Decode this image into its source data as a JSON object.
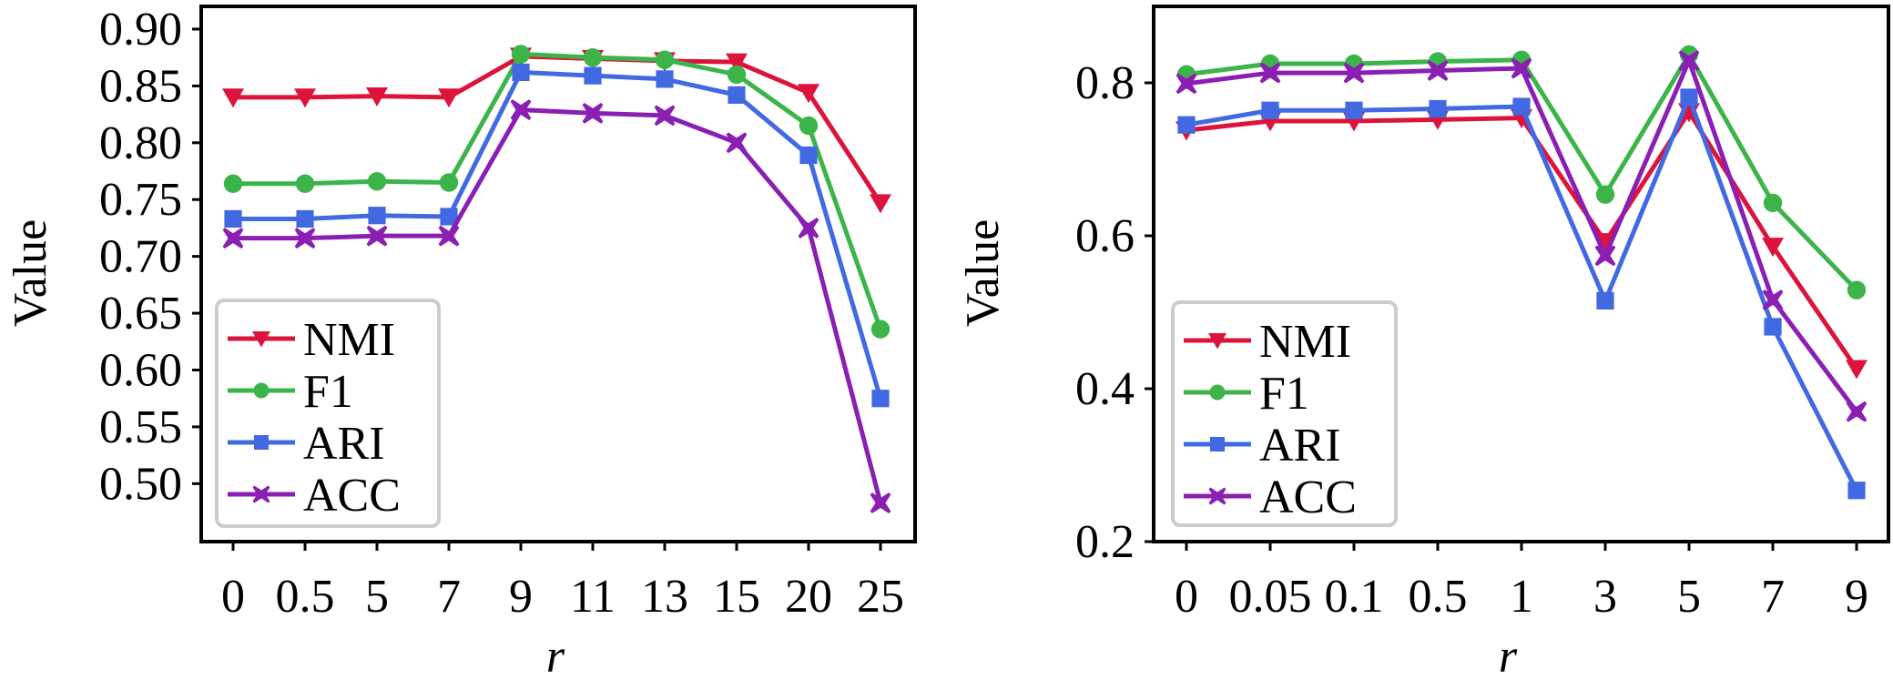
{
  "chart_data": [
    {
      "type": "line",
      "panel": "left",
      "title": "",
      "xlabel": "r",
      "ylabel": "Value",
      "categories": [
        "0",
        "0.5",
        "5",
        "7",
        "9",
        "11",
        "13",
        "15",
        "20",
        "25"
      ],
      "ylim": [
        0.449,
        0.92
      ],
      "yticks": [
        0.5,
        0.55,
        0.6,
        0.65,
        0.7,
        0.75,
        0.8,
        0.85,
        0.9
      ],
      "ytick_labels": [
        "0.50",
        "0.55",
        "0.60",
        "0.65",
        "0.70",
        "0.75",
        "0.80",
        "0.85",
        "0.90"
      ],
      "grid": false,
      "legend_position": "lower-left",
      "series": [
        {
          "name": "NMI",
          "marker": "triangle-down",
          "color": "#dc143c",
          "values": [
            0.84,
            0.84,
            0.841,
            0.84,
            0.876,
            0.874,
            0.872,
            0.871,
            0.844,
            0.747
          ]
        },
        {
          "name": "F1",
          "marker": "circle",
          "color": "#3cb44a",
          "values": [
            0.764,
            0.764,
            0.766,
            0.765,
            0.878,
            0.875,
            0.873,
            0.86,
            0.815,
            0.636
          ]
        },
        {
          "name": "ARI",
          "marker": "square",
          "color": "#4169e1",
          "values": [
            0.733,
            0.733,
            0.736,
            0.735,
            0.862,
            0.859,
            0.856,
            0.842,
            0.789,
            0.575
          ]
        },
        {
          "name": "ACC",
          "marker": "x-filled",
          "color": "#8b1fb4",
          "values": [
            0.716,
            0.716,
            0.718,
            0.718,
            0.829,
            0.826,
            0.824,
            0.8,
            0.725,
            0.483
          ]
        }
      ]
    },
    {
      "type": "line",
      "panel": "right",
      "title": "",
      "xlabel": "r",
      "ylabel": "Value",
      "categories": [
        "0",
        "0.05",
        "0.1",
        "0.5",
        "1",
        "3",
        "5",
        "7",
        "9"
      ],
      "ylim": [
        0.2,
        0.9
      ],
      "yticks": [
        0.2,
        0.4,
        0.6,
        0.8
      ],
      "ytick_labels": [
        "0.2",
        "0.4",
        "0.6",
        "0.8"
      ],
      "grid": false,
      "legend_position": "lower-left",
      "series": [
        {
          "name": "NMI",
          "marker": "triangle-down",
          "color": "#dc143c",
          "values": [
            0.738,
            0.75,
            0.75,
            0.752,
            0.754,
            0.592,
            0.762,
            0.586,
            0.426
          ]
        },
        {
          "name": "F1",
          "marker": "circle",
          "color": "#3cb44a",
          "values": [
            0.811,
            0.825,
            0.825,
            0.828,
            0.83,
            0.654,
            0.837,
            0.643,
            0.529
          ]
        },
        {
          "name": "ARI",
          "marker": "square",
          "color": "#4169e1",
          "values": [
            0.745,
            0.764,
            0.764,
            0.766,
            0.769,
            0.515,
            0.781,
            0.481,
            0.267
          ]
        },
        {
          "name": "ACC",
          "marker": "x-filled",
          "color": "#8b1fb4",
          "values": [
            0.799,
            0.813,
            0.813,
            0.816,
            0.819,
            0.574,
            0.829,
            0.516,
            0.37
          ]
        }
      ]
    }
  ]
}
